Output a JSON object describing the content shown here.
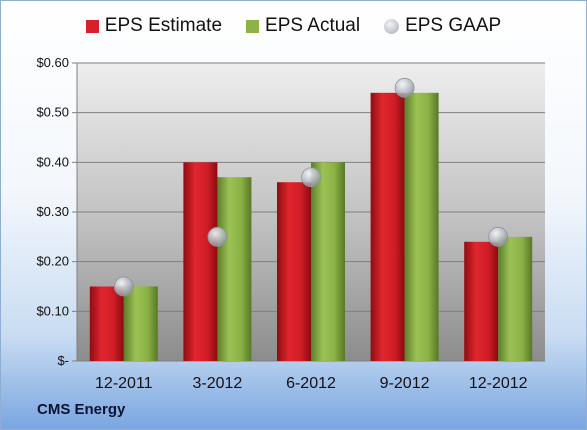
{
  "company": "CMS Energy",
  "colors": {
    "estimate": "#d4212a",
    "actual": "#8db347",
    "gaap": "#b7bcc4"
  },
  "chart_data": {
    "type": "bar",
    "categories": [
      "12-2011",
      "3-2012",
      "6-2012",
      "9-2012",
      "12-2012"
    ],
    "series": [
      {
        "name": "EPS Estimate",
        "values": [
          0.15,
          0.4,
          0.36,
          0.54,
          0.24
        ]
      },
      {
        "name": "EPS Actual",
        "values": [
          0.15,
          0.37,
          0.4,
          0.54,
          0.25
        ]
      },
      {
        "name": "EPS GAAP",
        "values": [
          0.15,
          0.25,
          0.37,
          0.55,
          0.25
        ]
      }
    ],
    "yticks": [
      0,
      0.1,
      0.2,
      0.3,
      0.4,
      0.5,
      0.6
    ],
    "ytick_labels": [
      "$-",
      "$0.10",
      "$0.20",
      "$0.30",
      "$0.40",
      "$0.50",
      "$0.60"
    ],
    "ylim": [
      0,
      0.6
    ],
    "grid": true,
    "legend_position": "top"
  }
}
